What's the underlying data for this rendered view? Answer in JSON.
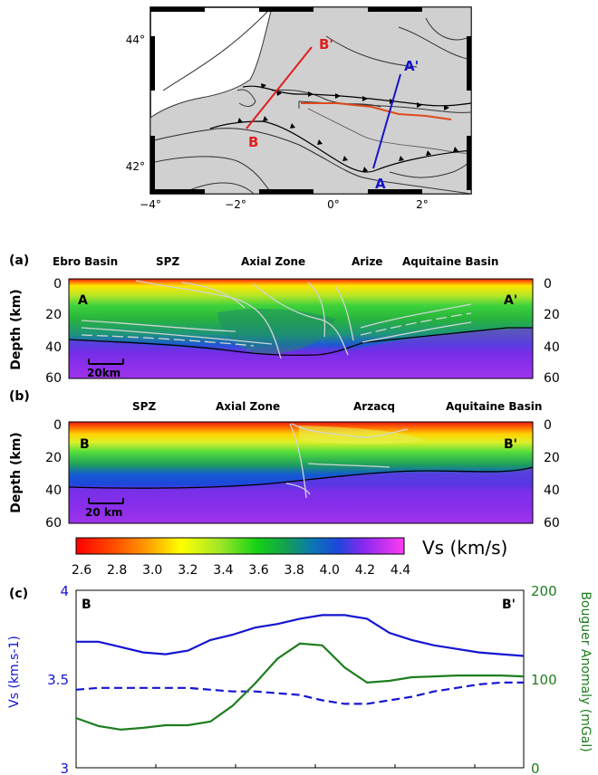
{
  "map": {
    "lat_labels": [
      "44°",
      "42°"
    ],
    "lon_labels": [
      "−4°",
      "−2°",
      "0°",
      "2°"
    ],
    "profile_labels": {
      "A": "A",
      "A_prime": "A'",
      "B": "B",
      "B_prime": "B'"
    },
    "colors": {
      "land": "#d0d0d0",
      "profile_A": "#1414c8",
      "profile_B": "#e01e1e",
      "fault_red": "#e04a1a"
    }
  },
  "panel_a": {
    "letter": "(a)",
    "region_labels": [
      "Ebro Basin",
      "SPZ",
      "Axial Zone",
      "Arize",
      "Aquitaine Basin"
    ],
    "y_label": "Depth (km)",
    "y_ticks": [
      "0",
      "20",
      "40",
      "60"
    ],
    "left_end": "A",
    "right_end": "A'",
    "scale_bar": "20km"
  },
  "panel_b": {
    "letter": "(b)",
    "region_labels": [
      "SPZ",
      "Axial Zone",
      "Arzacq",
      "Aquitaine Basin"
    ],
    "y_label": "Depth (km)",
    "y_ticks": [
      "0",
      "20",
      "40",
      "60"
    ],
    "left_end": "B",
    "right_end": "B'",
    "scale_bar": "20 km"
  },
  "colorbar": {
    "label": "Vs (km/s)",
    "ticks": [
      "2.6",
      "2.8",
      "3.0",
      "3.2",
      "3.4",
      "3.6",
      "3.8",
      "4.0",
      "4.2",
      "4.4"
    ]
  },
  "panel_c": {
    "letter": "(c)",
    "left_end": "B",
    "right_end": "B'",
    "y_left_label": "Vs (km.s-1)",
    "y_right_label": "Bouguer Anomaly (mGal)",
    "y_left_ticks": [
      "4",
      "3.5",
      "3"
    ],
    "y_right_ticks": [
      "200",
      "100",
      "0"
    ],
    "colors": {
      "vs": "#1414d2",
      "bouguer": "#1e7d1e"
    }
  },
  "chart_data": {
    "type": "line",
    "x": [
      0,
      5,
      10,
      15,
      20,
      25,
      30,
      35,
      40,
      45,
      50,
      55,
      60,
      65,
      70,
      75,
      80,
      85,
      90,
      95,
      100
    ],
    "series": [
      {
        "axis": "left",
        "style": "solid",
        "values": [
          3.71,
          3.71,
          3.68,
          3.65,
          3.64,
          3.66,
          3.72,
          3.75,
          3.79,
          3.81,
          3.84,
          3.86,
          3.86,
          3.84,
          3.76,
          3.72,
          3.69,
          3.67,
          3.65,
          3.64,
          3.63
        ]
      },
      {
        "axis": "left",
        "style": "dashed",
        "values": [
          3.44,
          3.45,
          3.45,
          3.45,
          3.45,
          3.45,
          3.44,
          3.43,
          3.43,
          3.42,
          3.41,
          3.38,
          3.36,
          3.36,
          3.38,
          3.4,
          3.43,
          3.45,
          3.47,
          3.48,
          3.48
        ]
      },
      {
        "axis": "right",
        "style": "solid",
        "values": [
          56,
          47,
          43,
          45,
          48,
          48,
          52,
          70,
          95,
          123,
          140,
          138,
          113,
          96,
          98,
          102,
          103,
          104,
          104,
          104,
          103
        ]
      }
    ],
    "ylim_left": [
      3,
      4
    ],
    "ylim_right": [
      0,
      200
    ]
  }
}
